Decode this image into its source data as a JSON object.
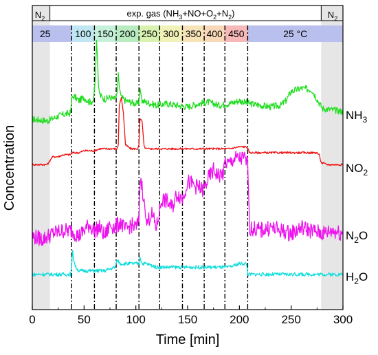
{
  "chart_data": {
    "type": "line",
    "xlabel": "Time [min]",
    "ylabel": "Concentration",
    "xlim": [
      0,
      300
    ],
    "xticks": [
      0,
      50,
      100,
      150,
      200,
      250,
      300
    ],
    "grid": false,
    "header": {
      "n2_left": "N",
      "n2_right": "N",
      "gas_prefix": "exp. gas (NH",
      "gas_mid1": "+NO+O",
      "gas_mid2": "+N",
      "gas_suffix": ")",
      "subscript_2": "2",
      "subscript_3": "3"
    },
    "n2_regions": [
      [
        0,
        17
      ],
      [
        279,
        300
      ]
    ],
    "temperature_steps": [
      {
        "label": "25",
        "start": 0,
        "end": 38,
        "color": "#b9c0ee"
      },
      {
        "label": "100",
        "start": 38,
        "end": 60,
        "color": "#bfe6f2"
      },
      {
        "label": "150",
        "start": 60,
        "end": 81,
        "color": "#c6f0da"
      },
      {
        "label": "200",
        "start": 81,
        "end": 103,
        "color": "#b8ecc0"
      },
      {
        "label": "250",
        "start": 103,
        "end": 123,
        "color": "#d8f2b0"
      },
      {
        "label": "300",
        "start": 123,
        "end": 145,
        "color": "#f0f2b8"
      },
      {
        "label": "350",
        "start": 145,
        "end": 166,
        "color": "#f6e3b8"
      },
      {
        "label": "400",
        "start": 166,
        "end": 186,
        "color": "#f8d8b8"
      },
      {
        "label": "450",
        "start": 186,
        "end": 208,
        "color": "#f6b8b8"
      },
      {
        "label": "25 °C",
        "start": 208,
        "end": 300,
        "color": "#b9c0ee"
      }
    ],
    "step_lines": [
      38,
      60,
      81,
      103,
      123,
      145,
      166,
      186,
      208
    ],
    "series": [
      {
        "name": "NH3",
        "label_main": "NH",
        "label_sub": "3",
        "color": "#22dd22",
        "x": [
          0,
          15,
          25,
          30,
          37,
          38,
          40,
          45,
          50,
          55,
          59,
          61,
          62,
          63,
          64,
          66,
          70,
          75,
          80,
          82,
          83,
          84,
          86,
          90,
          95,
          100,
          103,
          104,
          106,
          110,
          120,
          130,
          140,
          150,
          160,
          170,
          180,
          190,
          200,
          205,
          210,
          220,
          230,
          240,
          245,
          250,
          260,
          270,
          275,
          280,
          290,
          300
        ],
        "y": [
          43,
          42,
          45,
          46,
          47,
          56,
          58,
          55,
          57,
          54,
          55,
          70,
          94,
          82,
          62,
          58,
          56,
          57,
          56,
          60,
          73,
          64,
          57,
          55,
          54,
          53,
          53,
          63,
          55,
          54,
          52,
          53,
          52,
          51,
          53,
          54,
          52,
          53,
          55,
          54,
          53,
          52,
          51,
          52,
          55,
          61,
          63,
          62,
          56,
          50,
          49,
          48
        ]
      },
      {
        "name": "NO2",
        "label_main": "NO",
        "label_sub": "2",
        "color": "#ee1111",
        "x": [
          0,
          14,
          16,
          18,
          20,
          25,
          30,
          37,
          38,
          45,
          50,
          55,
          60,
          65,
          70,
          75,
          80,
          82,
          83,
          84,
          86,
          88,
          90,
          95,
          100,
          102,
          103,
          104,
          106,
          108,
          110,
          120,
          130,
          140,
          150,
          160,
          170,
          180,
          190,
          200,
          205,
          207,
          208,
          210,
          220,
          230,
          240,
          250,
          260,
          270,
          275,
          277,
          279,
          285,
          290,
          300
        ],
        "y": [
          32,
          32,
          33,
          35,
          36,
          36,
          37,
          37,
          38,
          38,
          39,
          39,
          39,
          40,
          40,
          40,
          40,
          40,
          42,
          62,
          66,
          58,
          42,
          40,
          40,
          40,
          42,
          55,
          54,
          41,
          40,
          40,
          40,
          40,
          40,
          40,
          40,
          40,
          40,
          41,
          41,
          41,
          40,
          38,
          38,
          38,
          38,
          38,
          38,
          38,
          38,
          37,
          33,
          32,
          32,
          32
        ]
      },
      {
        "name": "N2O",
        "label_main": "N",
        "label_sub": "2",
        "label_tail": "O",
        "color": "#ee11ee",
        "x": [
          0,
          10,
          20,
          30,
          38,
          45,
          50,
          55,
          60,
          65,
          70,
          75,
          80,
          85,
          90,
          95,
          100,
          103,
          104,
          105,
          106,
          108,
          110,
          115,
          120,
          123,
          125,
          130,
          135,
          140,
          145,
          150,
          155,
          160,
          165,
          170,
          175,
          180,
          185,
          186,
          190,
          195,
          200,
          205,
          207,
          208,
          210,
          220,
          230,
          240,
          250,
          260,
          270,
          280,
          290,
          300
        ],
        "y": [
          15,
          14,
          16,
          17,
          17,
          15,
          17,
          19,
          17,
          18,
          15,
          19,
          18,
          20,
          17,
          19,
          18,
          20,
          34,
          35,
          32,
          28,
          19,
          23,
          18,
          24,
          28,
          27,
          25,
          30,
          28,
          34,
          33,
          32,
          31,
          35,
          38,
          36,
          37,
          41,
          40,
          42,
          42,
          42,
          41,
          40,
          18,
          17,
          18,
          17,
          16,
          18,
          17,
          16,
          17,
          16
        ]
      },
      {
        "name": "H2O",
        "label_main": "H",
        "label_sub": "2",
        "label_tail": "O",
        "color": "#11dddd",
        "x": [
          0,
          20,
          37,
          38,
          39,
          40,
          42,
          45,
          50,
          60,
          70,
          80,
          82,
          85,
          90,
          100,
          103,
          104,
          106,
          110,
          120,
          130,
          140,
          150,
          160,
          170,
          180,
          190,
          200,
          207,
          208,
          210,
          220,
          230,
          240,
          250,
          260,
          270,
          280,
          290,
          300
        ],
        "y": [
          5,
          5,
          5,
          7,
          12,
          9,
          7,
          6,
          6,
          6,
          6,
          7,
          9,
          8,
          8,
          8,
          8,
          10,
          8,
          8,
          7,
          7,
          7,
          7,
          7,
          7,
          7,
          7,
          8,
          8,
          5,
          5,
          5,
          5,
          5,
          5,
          5,
          5,
          5,
          5,
          5
        ]
      }
    ]
  }
}
